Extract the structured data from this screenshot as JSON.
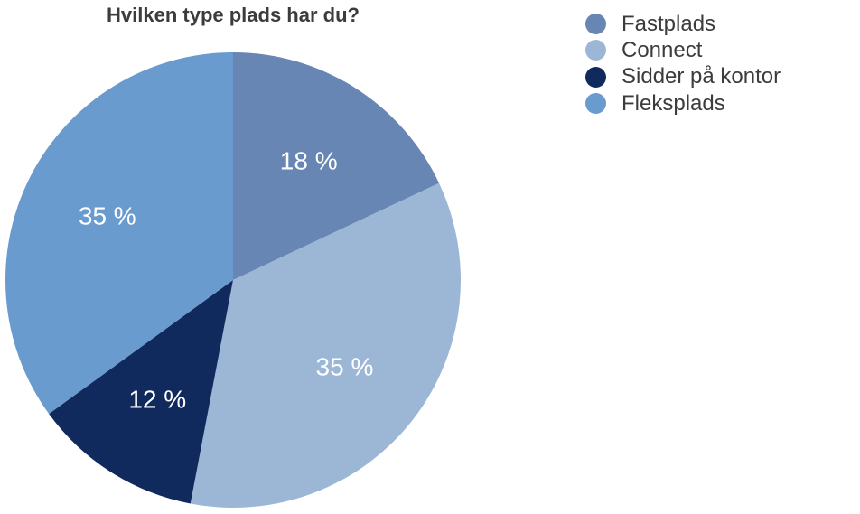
{
  "chart_data": {
    "type": "pie",
    "title": "Hvilken type plads har du?",
    "start_angle_deg": 0,
    "direction": "clockwise",
    "legend_position": "top-right",
    "slices": [
      {
        "name": "Fastplads",
        "value": 18,
        "label": "18 %",
        "color": "#6786b4"
      },
      {
        "name": "Connect",
        "value": 35,
        "label": "35 %",
        "color": "#9cb7d6"
      },
      {
        "name": "Sidder på kontor",
        "value": 12,
        "label": "12 %",
        "color": "#102a5e"
      },
      {
        "name": "Fleksplads",
        "value": 35,
        "label": "35 %",
        "color": "#6a9bcf"
      }
    ]
  }
}
